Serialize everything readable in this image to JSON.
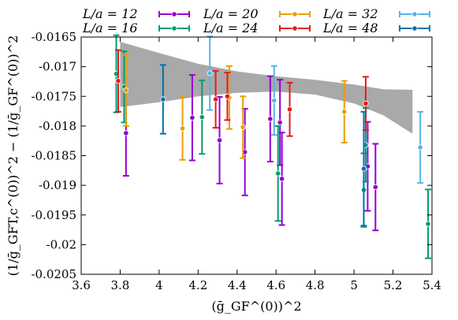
{
  "chart_data": {
    "type": "scatter",
    "title": "",
    "xlabel": "(ḡ_GF^(0))^2",
    "ylabel": "(1/ḡ_GFT,c^(0))^2 − (1/ḡ_GF^(0))^2",
    "xlim": [
      3.6,
      5.4
    ],
    "ylim": [
      -0.0205,
      -0.0165
    ],
    "x_ticks": [
      "3.6",
      "3.8",
      "4",
      "4.2",
      "4.4",
      "4.6",
      "4.8",
      "5",
      "5.2",
      "5.4"
    ],
    "y_ticks": [
      "-0.0165",
      "-0.017",
      "-0.0175",
      "-0.018",
      "-0.0185",
      "-0.019",
      "-0.0195",
      "-0.02",
      "-0.0205"
    ],
    "x_tick_values": [
      3.6,
      3.8,
      4.0,
      4.2,
      4.4,
      4.6,
      4.8,
      5.0,
      5.2,
      5.4
    ],
    "y_tick_values": [
      -0.0165,
      -0.017,
      -0.0175,
      -0.018,
      -0.0185,
      -0.019,
      -0.0195,
      -0.02,
      -0.0205
    ],
    "legend_position": "top",
    "series": [
      {
        "name": "L/a = 12",
        "color": "#9400d3",
        "points": [
          {
            "x": 3.83,
            "y": -0.01812,
            "err": 0.00072
          },
          {
            "x": 4.17,
            "y": -0.01786,
            "err": 0.00072
          },
          {
            "x": 4.31,
            "y": -0.01824,
            "err": 0.00073
          },
          {
            "x": 4.44,
            "y": -0.01844,
            "err": 0.00073
          },
          {
            "x": 4.57,
            "y": -0.01788,
            "err": 0.00072
          },
          {
            "x": 4.62,
            "y": -0.01794,
            "err": 0.00072
          },
          {
            "x": 4.63,
            "y": -0.01889,
            "err": 0.00078
          },
          {
            "x": 5.07,
            "y": -0.01868,
            "err": 0.00075
          },
          {
            "x": 5.11,
            "y": -0.01903,
            "err": 0.00073
          }
        ]
      },
      {
        "name": "L/a = 16",
        "color": "#009e73",
        "points": [
          {
            "x": 3.78,
            "y": -0.01712,
            "err": 0.00065
          },
          {
            "x": 3.82,
            "y": -0.01734,
            "err": 0.0006
          },
          {
            "x": 4.22,
            "y": -0.01785,
            "err": 0.00062
          },
          {
            "x": 4.61,
            "y": -0.0188,
            "err": 0.0008
          },
          {
            "x": 5.05,
            "y": -0.01908,
            "err": 0.00062
          },
          {
            "x": 5.06,
            "y": -0.01832,
            "err": 0.00062
          },
          {
            "x": 5.38,
            "y": -0.01965,
            "err": 0.00058
          }
        ]
      },
      {
        "name": "L/a = 20",
        "color": "#e69f00",
        "points": [
          {
            "x": 3.83,
            "y": -0.0174,
            "err": 0.0006
          },
          {
            "x": 4.12,
            "y": -0.01804,
            "err": 0.00053
          },
          {
            "x": 4.36,
            "y": -0.01752,
            "err": 0.00053
          },
          {
            "x": 4.43,
            "y": -0.01802,
            "err": 0.00052
          },
          {
            "x": 4.95,
            "y": -0.01776,
            "err": 0.00052
          }
        ]
      },
      {
        "name": "L/a = 24",
        "color": "#e41a1c",
        "points": [
          {
            "x": 3.79,
            "y": -0.01724,
            "err": 0.00052
          },
          {
            "x": 4.29,
            "y": -0.01755,
            "err": 0.00048
          },
          {
            "x": 4.35,
            "y": -0.0175,
            "err": 0.0004
          },
          {
            "x": 4.67,
            "y": -0.01772,
            "err": 0.00045
          },
          {
            "x": 5.06,
            "y": -0.01762,
            "err": 0.00045
          }
        ]
      },
      {
        "name": "L/a = 32",
        "color": "#56b4e9",
        "points": [
          {
            "x": 4.26,
            "y": -0.01711,
            "err": 0.00062
          },
          {
            "x": 4.59,
            "y": -0.01757,
            "err": 0.00058
          },
          {
            "x": 5.34,
            "y": -0.01836,
            "err": 0.0006
          }
        ]
      },
      {
        "name": "L/a = 48",
        "color": "#0072b2",
        "points": [
          {
            "x": 4.02,
            "y": -0.01755,
            "err": 0.00058
          },
          {
            "x": 5.05,
            "y": -0.01872,
            "err": 0.00096
          }
        ]
      }
    ],
    "band": {
      "color": "#a9a9a9",
      "x": [
        3.8,
        4.0,
        4.2,
        4.4,
        4.6,
        4.8,
        5.0,
        5.15,
        5.3
      ],
      "upper": [
        -0.01658,
        -0.01677,
        -0.01695,
        -0.01708,
        -0.01716,
        -0.01722,
        -0.0173,
        -0.01738,
        -0.01739
      ],
      "lower": [
        -0.01768,
        -0.0176,
        -0.0175,
        -0.01744,
        -0.01742,
        -0.01747,
        -0.01762,
        -0.01782,
        -0.01813
      ]
    }
  }
}
